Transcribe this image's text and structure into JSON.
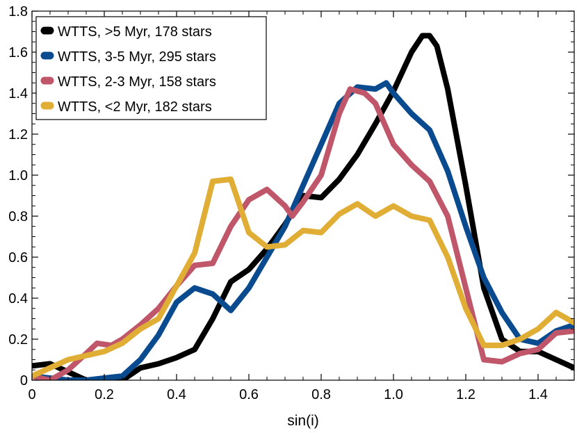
{
  "chart_data": {
    "type": "line",
    "xlabel": "sin(i)",
    "ylabel": "",
    "xlim": [
      0,
      1.5
    ],
    "ylim": [
      0,
      1.8
    ],
    "x_ticks": [
      "0",
      "0.2",
      "0.4",
      "0.6",
      "0.8",
      "1.0",
      "1.2",
      "1.4"
    ],
    "y_ticks": [
      "0",
      "0.2",
      "0.4",
      "0.6",
      "0.8",
      "1.0",
      "1.2",
      "1.4",
      "1.6",
      "1.8"
    ],
    "grid": false,
    "legend_position": "top-left",
    "series": [
      {
        "name": "WTTS, >5 Myr, 178 stars",
        "color": "#000000",
        "points": [
          [
            0,
            0.07
          ],
          [
            0.05,
            0.08
          ],
          [
            0.1,
            0.04
          ],
          [
            0.15,
            0.0
          ],
          [
            0.2,
            0.0
          ],
          [
            0.25,
            0.0
          ],
          [
            0.3,
            0.06
          ],
          [
            0.35,
            0.08
          ],
          [
            0.4,
            0.11
          ],
          [
            0.45,
            0.15
          ],
          [
            0.5,
            0.3
          ],
          [
            0.55,
            0.48
          ],
          [
            0.6,
            0.54
          ],
          [
            0.65,
            0.64
          ],
          [
            0.7,
            0.76
          ],
          [
            0.75,
            0.9
          ],
          [
            0.8,
            0.89
          ],
          [
            0.85,
            0.98
          ],
          [
            0.9,
            1.1
          ],
          [
            0.95,
            1.25
          ],
          [
            1.0,
            1.41
          ],
          [
            1.05,
            1.6
          ],
          [
            1.08,
            1.68
          ],
          [
            1.1,
            1.68
          ],
          [
            1.12,
            1.63
          ],
          [
            1.15,
            1.42
          ],
          [
            1.2,
            0.95
          ],
          [
            1.25,
            0.45
          ],
          [
            1.3,
            0.2
          ],
          [
            1.35,
            0.14
          ],
          [
            1.4,
            0.14
          ],
          [
            1.45,
            0.1
          ],
          [
            1.5,
            0.06
          ]
        ]
      },
      {
        "name": "WTTS, 3-5 Myr, 295 stars",
        "color": "#0a4b8f",
        "points": [
          [
            0,
            0.02
          ],
          [
            0.05,
            0.01
          ],
          [
            0.1,
            0.0
          ],
          [
            0.15,
            0.0
          ],
          [
            0.2,
            0.01
          ],
          [
            0.25,
            0.02
          ],
          [
            0.3,
            0.1
          ],
          [
            0.35,
            0.22
          ],
          [
            0.4,
            0.38
          ],
          [
            0.45,
            0.45
          ],
          [
            0.5,
            0.42
          ],
          [
            0.55,
            0.34
          ],
          [
            0.6,
            0.45
          ],
          [
            0.65,
            0.6
          ],
          [
            0.7,
            0.75
          ],
          [
            0.75,
            0.95
          ],
          [
            0.8,
            1.15
          ],
          [
            0.85,
            1.35
          ],
          [
            0.9,
            1.43
          ],
          [
            0.95,
            1.42
          ],
          [
            0.98,
            1.45
          ],
          [
            1.0,
            1.4
          ],
          [
            1.05,
            1.3
          ],
          [
            1.1,
            1.22
          ],
          [
            1.15,
            1.02
          ],
          [
            1.2,
            0.75
          ],
          [
            1.25,
            0.5
          ],
          [
            1.3,
            0.33
          ],
          [
            1.35,
            0.2
          ],
          [
            1.4,
            0.18
          ],
          [
            1.45,
            0.24
          ],
          [
            1.5,
            0.27
          ]
        ]
      },
      {
        "name": "WTTS, 2-3 Myr, 158 stars",
        "color": "#c0566a",
        "points": [
          [
            0,
            0.02
          ],
          [
            0.05,
            0.0
          ],
          [
            0.1,
            0.05
          ],
          [
            0.15,
            0.13
          ],
          [
            0.18,
            0.18
          ],
          [
            0.22,
            0.17
          ],
          [
            0.25,
            0.2
          ],
          [
            0.3,
            0.27
          ],
          [
            0.35,
            0.35
          ],
          [
            0.4,
            0.46
          ],
          [
            0.45,
            0.56
          ],
          [
            0.5,
            0.57
          ],
          [
            0.55,
            0.75
          ],
          [
            0.6,
            0.88
          ],
          [
            0.65,
            0.93
          ],
          [
            0.7,
            0.85
          ],
          [
            0.72,
            0.8
          ],
          [
            0.75,
            0.87
          ],
          [
            0.8,
            1.0
          ],
          [
            0.85,
            1.3
          ],
          [
            0.88,
            1.42
          ],
          [
            0.92,
            1.4
          ],
          [
            0.95,
            1.35
          ],
          [
            1.0,
            1.15
          ],
          [
            1.05,
            1.05
          ],
          [
            1.1,
            0.97
          ],
          [
            1.15,
            0.8
          ],
          [
            1.2,
            0.45
          ],
          [
            1.25,
            0.1
          ],
          [
            1.3,
            0.09
          ],
          [
            1.35,
            0.13
          ],
          [
            1.4,
            0.15
          ],
          [
            1.45,
            0.23
          ],
          [
            1.5,
            0.24
          ]
        ]
      },
      {
        "name": "WTTS, <2 Myr, 182 stars",
        "color": "#e0ad35",
        "points": [
          [
            0,
            0.02
          ],
          [
            0.05,
            0.06
          ],
          [
            0.1,
            0.1
          ],
          [
            0.15,
            0.12
          ],
          [
            0.2,
            0.14
          ],
          [
            0.25,
            0.18
          ],
          [
            0.3,
            0.25
          ],
          [
            0.35,
            0.3
          ],
          [
            0.4,
            0.46
          ],
          [
            0.45,
            0.62
          ],
          [
            0.5,
            0.97
          ],
          [
            0.55,
            0.98
          ],
          [
            0.6,
            0.72
          ],
          [
            0.65,
            0.65
          ],
          [
            0.7,
            0.66
          ],
          [
            0.75,
            0.73
          ],
          [
            0.8,
            0.72
          ],
          [
            0.85,
            0.81
          ],
          [
            0.9,
            0.86
          ],
          [
            0.95,
            0.8
          ],
          [
            1.0,
            0.85
          ],
          [
            1.05,
            0.8
          ],
          [
            1.1,
            0.78
          ],
          [
            1.15,
            0.6
          ],
          [
            1.2,
            0.35
          ],
          [
            1.25,
            0.17
          ],
          [
            1.3,
            0.17
          ],
          [
            1.35,
            0.2
          ],
          [
            1.4,
            0.25
          ],
          [
            1.45,
            0.33
          ],
          [
            1.5,
            0.28
          ]
        ]
      }
    ]
  }
}
